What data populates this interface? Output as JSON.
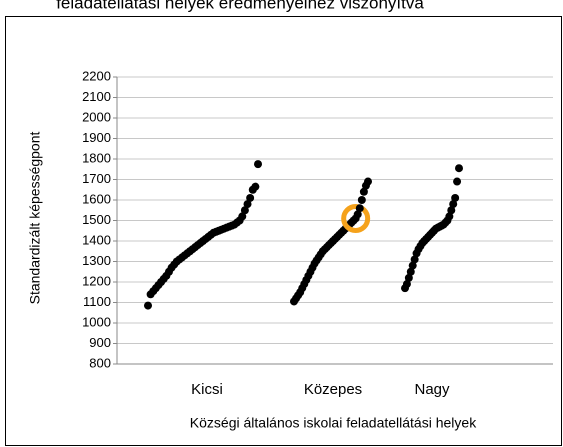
{
  "chart_data": {
    "type": "strip",
    "title": "feladatellátási helyek eredményeihez viszonyítva",
    "y_label": "Standardizált képességpont",
    "x_label": "Községi általános iskolai feladatellátási helyek",
    "categories": [
      "Kicsi",
      "Közepes",
      "Nagy"
    ],
    "ylim": [
      800,
      2200
    ],
    "yticks": [
      800,
      900,
      1000,
      1100,
      1200,
      1300,
      1400,
      1500,
      1600,
      1700,
      1800,
      1900,
      2000,
      2100,
      2200
    ],
    "grid": true,
    "color": "#000000",
    "highlight_color": "#f5a21b",
    "series": [
      {
        "values": [
          1085,
          1140,
          1155,
          1170,
          1185,
          1200,
          1215,
          1230,
          1250,
          1270,
          1285,
          1300,
          1310,
          1320,
          1330,
          1340,
          1350,
          1360,
          1370,
          1380,
          1390,
          1400,
          1410,
          1420,
          1430,
          1440,
          1445,
          1450,
          1455,
          1460,
          1465,
          1470,
          1475,
          1480,
          1490,
          1500,
          1520,
          1550,
          1580,
          1610,
          1650,
          1665,
          1775
        ]
      },
      {
        "values": [
          1105,
          1120,
          1135,
          1150,
          1170,
          1190,
          1210,
          1230,
          1250,
          1270,
          1290,
          1305,
          1320,
          1335,
          1350,
          1360,
          1370,
          1380,
          1390,
          1400,
          1410,
          1420,
          1430,
          1440,
          1450,
          1460,
          1470,
          1480,
          1490,
          1500,
          1510,
          1530,
          1560,
          1600,
          1640,
          1670,
          1690
        ],
        "highlight_index": 30
      },
      {
        "values": [
          1170,
          1190,
          1220,
          1250,
          1280,
          1310,
          1340,
          1360,
          1375,
          1390,
          1400,
          1410,
          1420,
          1430,
          1440,
          1450,
          1460,
          1465,
          1470,
          1475,
          1480,
          1490,
          1500,
          1520,
          1550,
          1580,
          1610,
          1690,
          1755
        ]
      }
    ]
  }
}
